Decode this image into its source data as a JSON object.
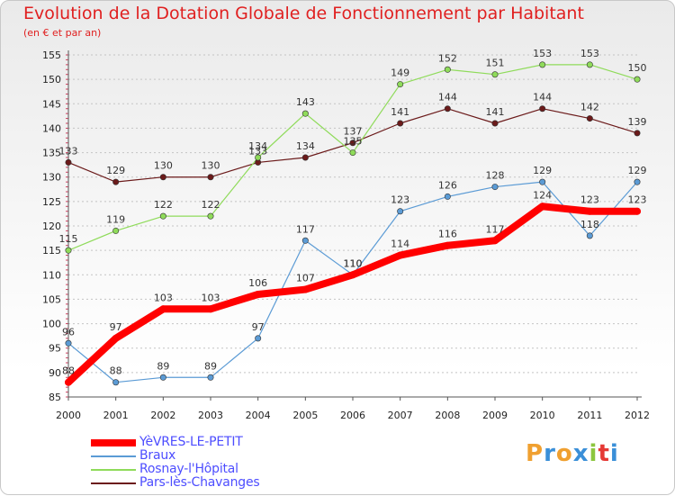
{
  "chart_data": {
    "type": "line",
    "title": "Evolution de la Dotation Globale de Fonctionnement par Habitant",
    "subtitle": "(en € et par an)",
    "xlabel": "",
    "ylabel": "",
    "x": [
      "2000",
      "2001",
      "2002",
      "2003",
      "2004",
      "2005",
      "2006",
      "2007",
      "2008",
      "2009",
      "2010",
      "2011",
      "2012"
    ],
    "ylim": [
      85,
      155
    ],
    "yticks": [
      85,
      90,
      95,
      100,
      105,
      110,
      115,
      120,
      125,
      130,
      135,
      140,
      145,
      150,
      155
    ],
    "grid": "horizontal dotted",
    "legend_position": "bottom-left",
    "series": [
      {
        "name": "YèVRES-LE-PETIT",
        "color": "#ff0000",
        "values": [
          88,
          97,
          103,
          103,
          106,
          107,
          110,
          114,
          116,
          117,
          124,
          123,
          123
        ]
      },
      {
        "name": "Braux",
        "color": "#5b9bd5",
        "values": [
          96,
          88,
          89,
          89,
          97,
          117,
          110,
          123,
          126,
          128,
          129,
          118,
          129
        ]
      },
      {
        "name": "Rosnay-l'Hôpital",
        "color": "#8fdb5a",
        "values": [
          115,
          119,
          122,
          122,
          134,
          143,
          135,
          149,
          152,
          151,
          153,
          153,
          150
        ]
      },
      {
        "name": "Pars-lès-Chavanges",
        "color": "#6b1a1a",
        "values": [
          133,
          129,
          130,
          130,
          133,
          134,
          137,
          141,
          144,
          141,
          144,
          142,
          139
        ]
      }
    ]
  },
  "logo": {
    "letters": [
      "P",
      "r",
      "o",
      "x",
      "i",
      "t",
      "i"
    ],
    "colors": [
      "#f0a030",
      "#3a8fd8",
      "#f0a030",
      "#3a8fd8",
      "#8cc63f",
      "#e53935",
      "#3a8fd8"
    ]
  }
}
